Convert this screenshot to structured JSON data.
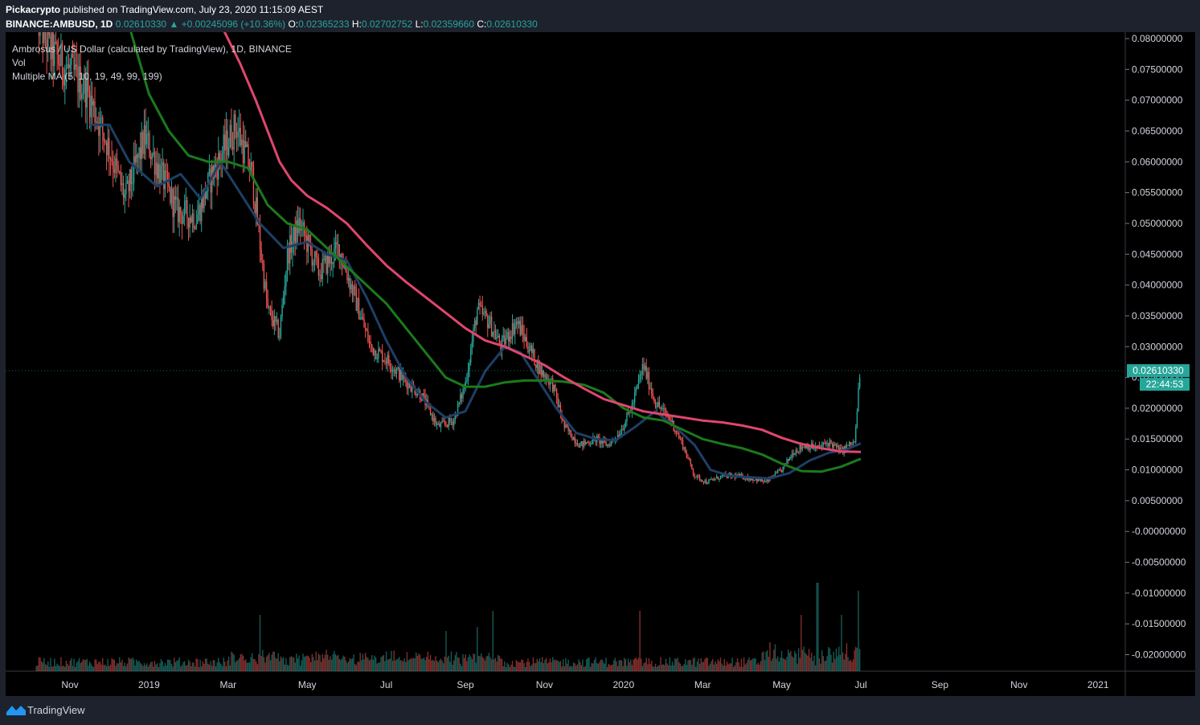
{
  "header": {
    "author": "Pickacrypto",
    "published_text": "published on TradingView.com, July 23, 2020 11:15:09 AEST",
    "symbol": "BINANCE:AMBUSD, 1D",
    "last": "0.02610330",
    "change": "▲ +0.00245096 (+10.36%)",
    "o_label": "O:",
    "o": "0.02365233",
    "h_label": "H:",
    "h": "0.02702752",
    "l_label": "L:",
    "l": "0.02359660",
    "c_label": "C:",
    "c": "0.02610330"
  },
  "legend": {
    "title": "Ambrosus / US Dollar (calculated by TradingView), 1D, BINANCE",
    "vol": "Vol",
    "ma": "Multiple MA (5, 10, 19, 49, 99, 199)"
  },
  "footer": {
    "brand": "TradingView"
  },
  "colors": {
    "bg": "#000000",
    "up": "#26a69a",
    "down": "#ef5350",
    "ma_blue": "#1d3f66",
    "ma_green": "#1b7a1b",
    "ma_pink": "#e0466e",
    "price_label_bg": "#26a69a"
  },
  "chart_data": {
    "type": "candlestick",
    "symbol": "AMBUSD",
    "timeframe": "1D",
    "y_ticks": [
      "0.08000000",
      "0.07500000",
      "0.07000000",
      "0.06500000",
      "0.06000000",
      "0.05500000",
      "0.05000000",
      "0.04500000",
      "0.04000000",
      "0.03500000",
      "0.03000000",
      "0.02500000",
      "0.02000000",
      "0.01500000",
      "0.01000000",
      "0.00500000",
      "-0.00000000",
      "-0.00500000",
      "-0.01000000",
      "-0.01500000",
      "-0.02000000"
    ],
    "ylim": [
      -0.0228,
      0.0808
    ],
    "x_ticks": [
      "Nov",
      "2019",
      "Mar",
      "May",
      "Jul",
      "Sep",
      "Nov",
      "2020",
      "Mar",
      "May",
      "Jul",
      "Sep",
      "Nov",
      "2021"
    ],
    "x_tick_months": [
      0,
      2,
      4,
      6,
      8,
      10,
      12,
      14,
      16,
      18,
      20,
      22,
      24,
      26
    ],
    "last_price_label": "0.02610330",
    "countdown_label": "22:44:53",
    "last_price": 0.0261033,
    "price_anchors": [
      [
        -0.85,
        0.084
      ],
      [
        -0.5,
        0.078
      ],
      [
        0.4,
        0.072
      ],
      [
        1.0,
        0.062
      ],
      [
        1.4,
        0.054
      ],
      [
        1.9,
        0.064
      ],
      [
        2.3,
        0.058
      ],
      [
        2.7,
        0.052
      ],
      [
        3.2,
        0.051
      ],
      [
        3.6,
        0.058
      ],
      [
        4.2,
        0.066
      ],
      [
        4.6,
        0.058
      ],
      [
        5.0,
        0.036
      ],
      [
        5.3,
        0.032
      ],
      [
        5.5,
        0.045
      ],
      [
        5.8,
        0.05
      ],
      [
        6.3,
        0.042
      ],
      [
        6.8,
        0.046
      ],
      [
        7.2,
        0.038
      ],
      [
        7.6,
        0.03
      ],
      [
        8.0,
        0.028
      ],
      [
        8.4,
        0.025
      ],
      [
        8.9,
        0.022
      ],
      [
        9.3,
        0.017
      ],
      [
        9.7,
        0.018
      ],
      [
        10.0,
        0.024
      ],
      [
        10.3,
        0.036
      ],
      [
        10.6,
        0.034
      ],
      [
        10.9,
        0.03
      ],
      [
        11.3,
        0.034
      ],
      [
        11.6,
        0.03
      ],
      [
        11.9,
        0.026
      ],
      [
        12.2,
        0.024
      ],
      [
        12.5,
        0.017
      ],
      [
        12.9,
        0.014
      ],
      [
        13.3,
        0.015
      ],
      [
        13.6,
        0.014
      ],
      [
        13.9,
        0.016
      ],
      [
        14.2,
        0.02
      ],
      [
        14.5,
        0.027
      ],
      [
        14.8,
        0.021
      ],
      [
        15.2,
        0.018
      ],
      [
        15.5,
        0.014
      ],
      [
        15.8,
        0.009
      ],
      [
        16.1,
        0.008
      ],
      [
        16.5,
        0.009
      ],
      [
        16.9,
        0.009
      ],
      [
        17.3,
        0.0085
      ],
      [
        17.6,
        0.008
      ],
      [
        18.0,
        0.01
      ],
      [
        18.3,
        0.013
      ],
      [
        18.6,
        0.014
      ],
      [
        18.9,
        0.0135
      ],
      [
        19.2,
        0.0145
      ],
      [
        19.5,
        0.013
      ],
      [
        19.7,
        0.014
      ],
      [
        19.85,
        0.0145
      ],
      [
        19.95,
        0.0236
      ],
      [
        20.0,
        0.0261
      ]
    ],
    "ma_lines": [
      {
        "label": "MA blue",
        "points": [
          [
            0.5,
            0.066
          ],
          [
            1.0,
            0.066
          ],
          [
            1.5,
            0.06
          ],
          [
            2.2,
            0.056
          ],
          [
            2.8,
            0.058
          ],
          [
            3.3,
            0.054
          ],
          [
            3.8,
            0.06
          ],
          [
            4.3,
            0.055
          ],
          [
            4.8,
            0.05
          ],
          [
            5.4,
            0.046
          ],
          [
            6.0,
            0.047
          ],
          [
            6.5,
            0.045
          ],
          [
            7.0,
            0.044
          ],
          [
            7.5,
            0.038
          ],
          [
            8.0,
            0.031
          ],
          [
            8.5,
            0.025
          ],
          [
            9.0,
            0.021
          ],
          [
            9.5,
            0.0185
          ],
          [
            10.0,
            0.0195
          ],
          [
            10.5,
            0.026
          ],
          [
            11.0,
            0.03
          ],
          [
            11.4,
            0.029
          ],
          [
            11.8,
            0.025
          ],
          [
            12.3,
            0.02
          ],
          [
            12.8,
            0.016
          ],
          [
            13.3,
            0.015
          ],
          [
            13.8,
            0.0148
          ],
          [
            14.3,
            0.017
          ],
          [
            14.8,
            0.0195
          ],
          [
            15.3,
            0.017
          ],
          [
            15.8,
            0.014
          ],
          [
            16.2,
            0.01
          ],
          [
            16.7,
            0.009
          ],
          [
            17.2,
            0.0088
          ],
          [
            17.7,
            0.0086
          ],
          [
            18.2,
            0.0095
          ],
          [
            18.7,
            0.0115
          ],
          [
            19.2,
            0.0128
          ],
          [
            19.6,
            0.0132
          ],
          [
            20.0,
            0.0143
          ]
        ]
      },
      {
        "label": "MA green",
        "points": [
          [
            1.0,
            0.088
          ],
          [
            1.5,
            0.082
          ],
          [
            2.0,
            0.071
          ],
          [
            2.5,
            0.065
          ],
          [
            3.0,
            0.061
          ],
          [
            3.5,
            0.06
          ],
          [
            4.0,
            0.06
          ],
          [
            4.5,
            0.059
          ],
          [
            5.0,
            0.053
          ],
          [
            5.5,
            0.05
          ],
          [
            6.0,
            0.049
          ],
          [
            6.5,
            0.046
          ],
          [
            7.0,
            0.043
          ],
          [
            7.5,
            0.04
          ],
          [
            8.0,
            0.037
          ],
          [
            8.5,
            0.033
          ],
          [
            9.0,
            0.029
          ],
          [
            9.5,
            0.025
          ],
          [
            10.0,
            0.0235
          ],
          [
            10.5,
            0.0235
          ],
          [
            11.0,
            0.0242
          ],
          [
            11.5,
            0.0245
          ],
          [
            12.0,
            0.0245
          ],
          [
            12.5,
            0.0243
          ],
          [
            13.0,
            0.0238
          ],
          [
            13.5,
            0.0225
          ],
          [
            14.0,
            0.02
          ],
          [
            14.5,
            0.0185
          ],
          [
            15.0,
            0.018
          ],
          [
            15.5,
            0.0165
          ],
          [
            16.0,
            0.015
          ],
          [
            16.5,
            0.0142
          ],
          [
            17.0,
            0.0135
          ],
          [
            17.5,
            0.0125
          ],
          [
            18.0,
            0.011
          ],
          [
            18.5,
            0.0098
          ],
          [
            19.0,
            0.0097
          ],
          [
            19.5,
            0.0105
          ],
          [
            20.0,
            0.0118
          ]
        ]
      },
      {
        "label": "MA pink",
        "points": [
          [
            3.9,
            0.0812
          ],
          [
            4.3,
            0.076
          ],
          [
            4.7,
            0.07
          ],
          [
            5.0,
            0.065
          ],
          [
            5.3,
            0.06
          ],
          [
            5.6,
            0.057
          ],
          [
            6.0,
            0.0545
          ],
          [
            6.5,
            0.0525
          ],
          [
            7.0,
            0.05
          ],
          [
            7.5,
            0.0465
          ],
          [
            8.0,
            0.0432
          ],
          [
            8.5,
            0.0405
          ],
          [
            9.0,
            0.038
          ],
          [
            9.5,
            0.0355
          ],
          [
            10.0,
            0.033
          ],
          [
            10.5,
            0.031
          ],
          [
            11.0,
            0.03
          ],
          [
            11.5,
            0.0285
          ],
          [
            12.0,
            0.027
          ],
          [
            12.5,
            0.025
          ],
          [
            13.0,
            0.0232
          ],
          [
            13.5,
            0.0215
          ],
          [
            14.0,
            0.0205
          ],
          [
            14.5,
            0.0195
          ],
          [
            15.0,
            0.019
          ],
          [
            15.5,
            0.0185
          ],
          [
            16.0,
            0.018
          ],
          [
            16.5,
            0.0177
          ],
          [
            17.0,
            0.0172
          ],
          [
            17.5,
            0.0165
          ],
          [
            18.0,
            0.0152
          ],
          [
            18.5,
            0.0142
          ],
          [
            19.0,
            0.0135
          ],
          [
            19.5,
            0.013
          ],
          [
            20.0,
            0.0129
          ]
        ]
      }
    ],
    "volume_spikes": [
      [
        4.8,
        0.14
      ],
      [
        9.5,
        0.1
      ],
      [
        10.3,
        0.11
      ],
      [
        10.7,
        0.15
      ],
      [
        14.4,
        0.15
      ],
      [
        18.5,
        0.14
      ],
      [
        18.9,
        0.22
      ],
      [
        19.5,
        0.14
      ],
      [
        19.95,
        0.2
      ],
      [
        20.0,
        0.4
      ]
    ]
  }
}
